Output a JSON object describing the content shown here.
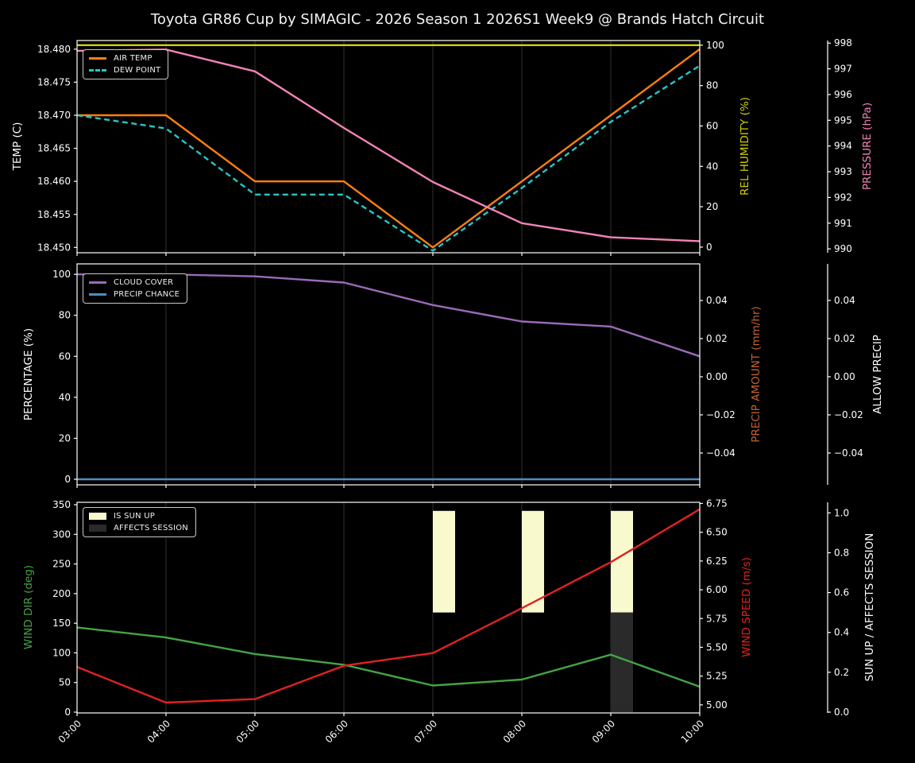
{
  "chart_data": {
    "type": "line",
    "title": "Toyota GR86 Cup by SIMAGIC - 2026 Season 1 2026S1 Week9 @ Brands Hatch Circuit",
    "background": "#000000",
    "grid": "vertical-only",
    "x": [
      "03:00",
      "04:00",
      "05:00",
      "06:00",
      "07:00",
      "08:00",
      "09:00",
      "10:00"
    ],
    "panels": [
      {
        "id": "temperature-humidity-pressure",
        "axes": {
          "left": {
            "label": "TEMP (C)",
            "color": "#ffffff",
            "decimals": 3,
            "ticks": [
              18.45,
              18.455,
              18.46,
              18.465,
              18.47,
              18.475,
              18.48
            ],
            "range": [
              18.4492,
              18.4813
            ]
          },
          "right1": {
            "label": "REL HUMIDITY (%)",
            "color": "#d2d200",
            "decimals": 0,
            "ticks": [
              0,
              20,
              40,
              60,
              80,
              100
            ],
            "range": [
              -2.8,
              102.3
            ]
          },
          "right2": {
            "label": "PRESSURE (hPa)",
            "color": "#f283b6",
            "decimals": 0,
            "ticks": [
              990,
              991,
              992,
              993,
              994,
              995,
              996,
              997,
              998
            ],
            "range": [
              989.85,
              998.1
            ]
          }
        },
        "series": [
          {
            "name": "AIR TEMP",
            "axis": "left",
            "color": "#ff7f0e",
            "style": "solid",
            "values": [
              18.47,
              18.47,
              18.46,
              18.46,
              18.45,
              18.46,
              18.47,
              18.48
            ]
          },
          {
            "name": "DEW POINT",
            "axis": "left",
            "color": "#26c6c6",
            "style": "dashed",
            "values": [
              18.47,
              18.468,
              18.458,
              18.458,
              18.4495,
              18.459,
              18.469,
              18.4775
            ]
          },
          {
            "name": "REL HUMIDITY",
            "axis": "right1",
            "color": "#d2d200",
            "style": "solid",
            "values": [
              100,
              100,
              100,
              100,
              100,
              100,
              100,
              100
            ]
          },
          {
            "name": "PRESSURE",
            "axis": "right2",
            "color": "#f283b6",
            "style": "solid",
            "values": [
              997.7,
              997.75,
              996.9,
              994.7,
              992.6,
              991.0,
              990.45,
              990.3
            ]
          }
        ],
        "legend": [
          {
            "label": "AIR TEMP",
            "color": "#ff7f0e",
            "swatch": "line"
          },
          {
            "label": "DEW POINT",
            "color": "#26c6c6",
            "swatch": "dashed"
          }
        ]
      },
      {
        "id": "cloud-precip",
        "axes": {
          "left": {
            "label": "PERCENTAGE (%)",
            "color": "#ffffff",
            "decimals": 0,
            "ticks": [
              0,
              20,
              40,
              60,
              80,
              100
            ],
            "range": [
              -2.7,
              105.1
            ]
          },
          "right1": {
            "label": "PRECIP AMOUNT (mm/hr)",
            "color": "#c2632f",
            "decimals": 2,
            "ticks": [
              -0.04,
              -0.02,
              0,
              0.02,
              0.04
            ],
            "range": [
              -0.0567,
              0.0592
            ]
          },
          "right2": {
            "label": "ALLOW PRECIP",
            "color": "#ffffff",
            "decimals": 2,
            "ticks": [
              -0.04,
              -0.02,
              0,
              0.02,
              0.04
            ],
            "range": [
              -0.0567,
              0.0592
            ]
          }
        },
        "series": [
          {
            "name": "CLOUD COVER",
            "axis": "left",
            "color": "#9c6ab8",
            "style": "solid",
            "values": [
              100,
              100,
              99,
              96,
              85,
              77,
              74.5,
              60
            ]
          },
          {
            "name": "PRECIP CHANCE",
            "axis": "left",
            "color": "#4d8ec2",
            "style": "solid",
            "values": [
              0,
              0,
              0,
              0,
              0,
              0,
              0,
              0
            ]
          }
        ],
        "legend": [
          {
            "label": "CLOUD COVER",
            "color": "#9c6ab8",
            "swatch": "line"
          },
          {
            "label": "PRECIP CHANCE",
            "color": "#4d8ec2",
            "swatch": "line"
          }
        ]
      },
      {
        "id": "wind-sun",
        "axes": {
          "left": {
            "label": "WIND DIR (deg)",
            "color": "#46a346",
            "decimals": 0,
            "ticks": [
              0,
              50,
              100,
              150,
              200,
              250,
              300,
              350
            ],
            "range": [
              -1.3,
              354.0
            ]
          },
          "right1": {
            "label": "WIND SPEED (m/s)",
            "color": "#e02222",
            "decimals": 2,
            "ticks": [
              5.0,
              5.25,
              5.5,
              5.75,
              6.0,
              6.25,
              6.5,
              6.75
            ],
            "range": [
              4.93,
              6.76
            ]
          },
          "right2": {
            "label": "SUN UP / AFFECTS SESSION",
            "color": "#ffffff",
            "decimals": 1,
            "ticks": [
              0,
              0.2,
              0.4,
              0.6,
              0.8,
              1.0
            ],
            "range": [
              -0.004,
              1.053
            ]
          }
        },
        "series": [
          {
            "name": "IS SUN UP",
            "type": "bar",
            "axis": "right2",
            "color": "#f9f9ce",
            "bottom": 0.5,
            "top": 1.01,
            "width_hours": 0.25,
            "values": [
              0,
              0,
              0,
              0,
              1,
              1,
              1,
              0
            ]
          },
          {
            "name": "AFFECTS SESSION",
            "type": "bar",
            "axis": "right2",
            "color": "#2a2a2a",
            "bottom": 0,
            "top": 0.5,
            "width_hours": 0.25,
            "values": [
              0,
              0,
              0,
              0,
              0,
              0,
              1,
              0
            ]
          },
          {
            "name": "WIND DIR",
            "axis": "left",
            "color": "#46a346",
            "style": "solid",
            "values": [
              143,
              126,
              98,
              80,
              45,
              55,
              97,
              43
            ]
          },
          {
            "name": "WIND SPEED",
            "axis": "right1",
            "color": "#e02222",
            "style": "solid",
            "values": [
              5.33,
              5.02,
              5.05,
              5.34,
              5.45,
              5.84,
              6.24,
              6.7
            ]
          }
        ],
        "legend": [
          {
            "label": "IS SUN UP",
            "color": "#f9f9ce",
            "swatch": "patch"
          },
          {
            "label": "AFFECTS SESSION",
            "color": "#2a2a2a",
            "swatch": "patch"
          }
        ]
      }
    ]
  }
}
